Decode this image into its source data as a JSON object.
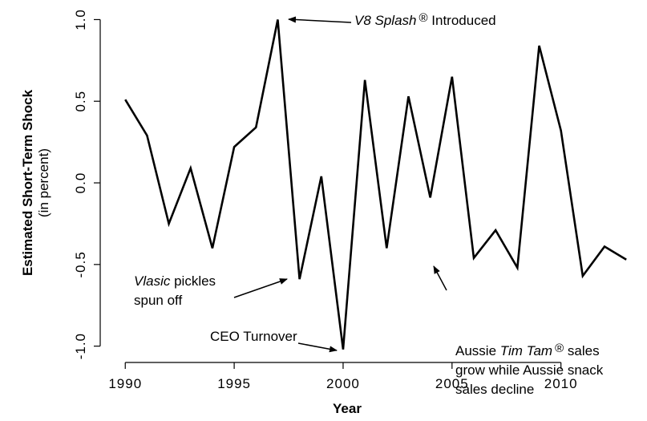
{
  "chart_data": {
    "type": "line",
    "y_label": "Estimated Short-Term Shock",
    "y_sublabel": "(in percent)",
    "x_label": "Year",
    "x": [
      1990,
      1991,
      1992,
      1993,
      1994,
      1995,
      1996,
      1997,
      1998,
      1999,
      2000,
      2001,
      2002,
      2003,
      2004,
      2005,
      2006,
      2007,
      2008,
      2009,
      2010,
      2011,
      2012,
      2013
    ],
    "series": [
      {
        "color": "#000000",
        "values": [
          0.51,
          0.29,
          -0.25,
          0.09,
          -0.4,
          0.22,
          0.34,
          1.0,
          -0.59,
          0.04,
          -1.02,
          0.63,
          -0.4,
          0.53,
          -0.09,
          0.65,
          -0.46,
          -0.29,
          -0.52,
          0.84,
          0.32,
          -0.57,
          -0.39,
          -0.47
        ]
      }
    ],
    "xlim": [
      1988.85,
      2013.95
    ],
    "ylim": [
      -1.1,
      1.12
    ],
    "xticks": [
      1990,
      1995,
      2000,
      2005,
      2010
    ],
    "yticks": [
      {
        "value": -1,
        "label": "-1.0"
      },
      -0.5,
      {
        "value": 0,
        "label": "0.0"
      },
      0.5,
      {
        "value": 1,
        "label": "1.0"
      }
    ],
    "annotations": [
      {
        "lines": [
          [
            "V8 Splash",
            "®",
            " Introduced"
          ]
        ]
      },
      {
        "lines": [
          [
            "Vlasic",
            " pickles"
          ],
          [
            "spun off"
          ]
        ]
      },
      {
        "lines": [
          [
            "CEO Turnover"
          ]
        ]
      },
      {
        "lines": [
          [
            "Aussie ",
            "Tim Tam",
            "®",
            " sales"
          ],
          [
            "grow while Aussie snack"
          ],
          [
            "sales decline"
          ]
        ]
      }
    ]
  }
}
